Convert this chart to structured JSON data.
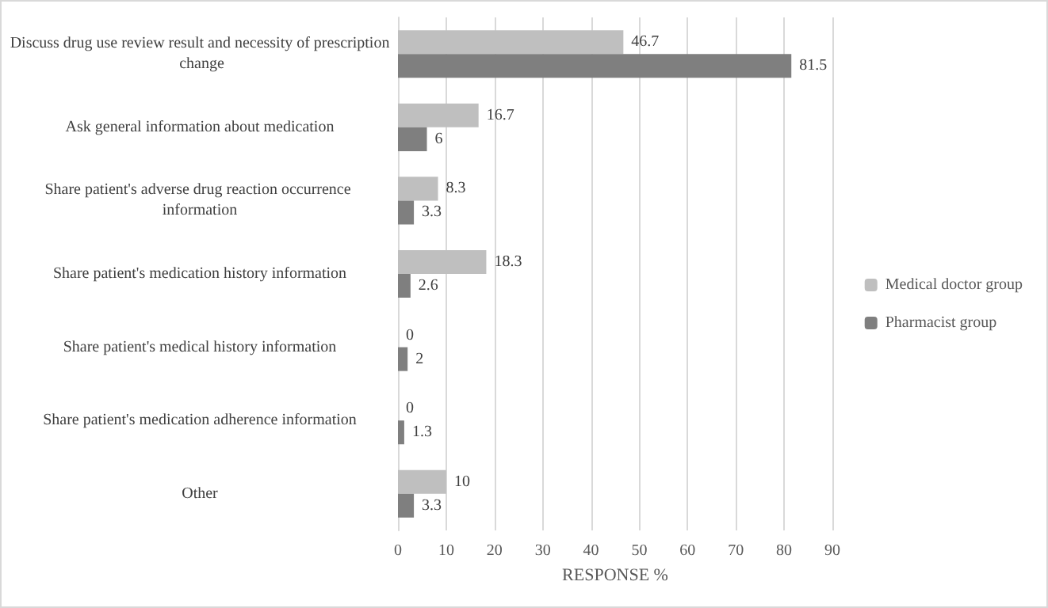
{
  "chart_data": {
    "type": "bar",
    "orientation": "horizontal",
    "xlabel": "RESPONSE %",
    "categories": [
      "Discuss drug use review result and necessity of prescription change",
      "Ask general information about medication",
      "Share patient's adverse drug reaction occurrence information",
      "Share patient's medication history information",
      "Share patient's medical history information",
      "Share patient's medication adherence information",
      "Other"
    ],
    "series": [
      {
        "name": "Medical doctor group",
        "color": "#bfbfbf",
        "values": [
          46.7,
          16.7,
          8.3,
          18.3,
          0,
          0,
          10
        ]
      },
      {
        "name": "Pharmacist group",
        "color": "#7f7f7f",
        "values": [
          81.5,
          6,
          3.3,
          2.6,
          2,
          1.3,
          3.3
        ]
      }
    ],
    "xlim": [
      0,
      90
    ],
    "xticks": [
      0,
      10,
      20,
      30,
      40,
      50,
      60,
      70,
      80,
      90
    ],
    "grid": "x",
    "legend": "right",
    "data_labels": true
  }
}
